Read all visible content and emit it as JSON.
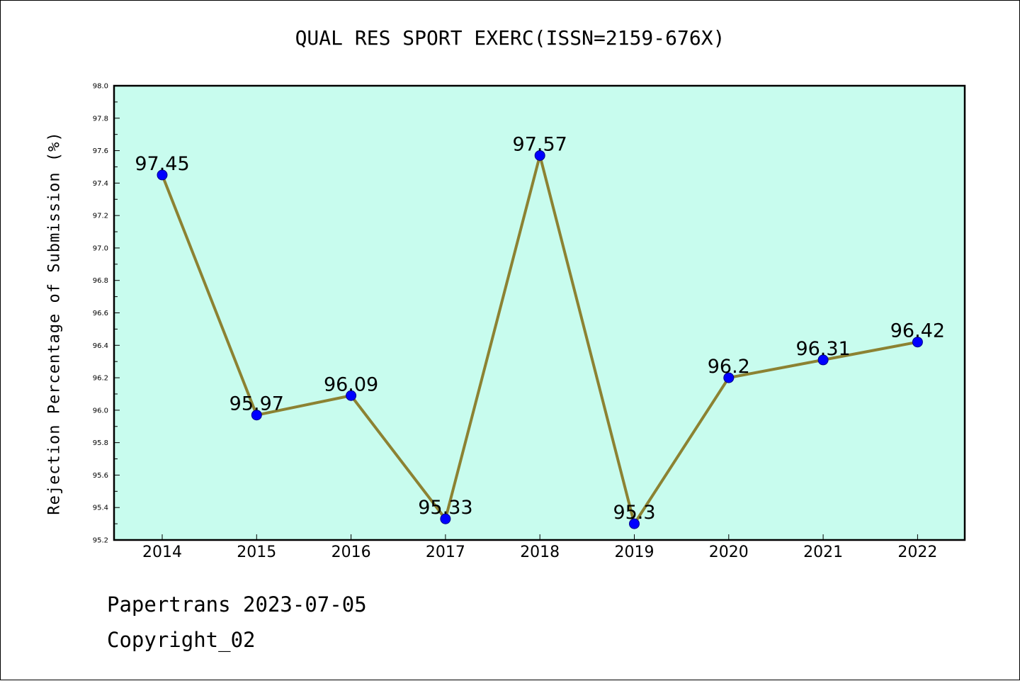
{
  "chart_data": {
    "type": "line",
    "title": "QUAL RES SPORT EXERC(ISSN=2159-676X)",
    "xlabel": "",
    "ylabel": "Rejection Percentage of Submission (%)",
    "categories": [
      "2014",
      "2015",
      "2016",
      "2017",
      "2018",
      "2019",
      "2020",
      "2021",
      "2022"
    ],
    "series": [
      {
        "values": [
          97.45,
          95.97,
          96.09,
          95.33,
          97.57,
          95.3,
          96.2,
          96.31,
          96.42
        ],
        "labels": [
          "97.45",
          "95.97",
          "96.09",
          "95.33",
          "97.57",
          "95.3",
          "96.2",
          "96.31",
          "96.42"
        ],
        "line_color": "#8c8232",
        "marker_color": "#0000ff"
      }
    ],
    "ylim": [
      95.2,
      98.0
    ],
    "yticks": [
      "95.2",
      "95.4",
      "95.6",
      "95.8",
      "96.0",
      "96.2",
      "96.4",
      "96.6",
      "96.8",
      "97.0",
      "97.2",
      "97.4",
      "97.6",
      "97.8",
      "98.0"
    ],
    "plot_background": "#c8fcee",
    "grid": false
  },
  "footer": {
    "line1": "Papertrans 2023-07-05",
    "line2": "Copyright_02"
  }
}
